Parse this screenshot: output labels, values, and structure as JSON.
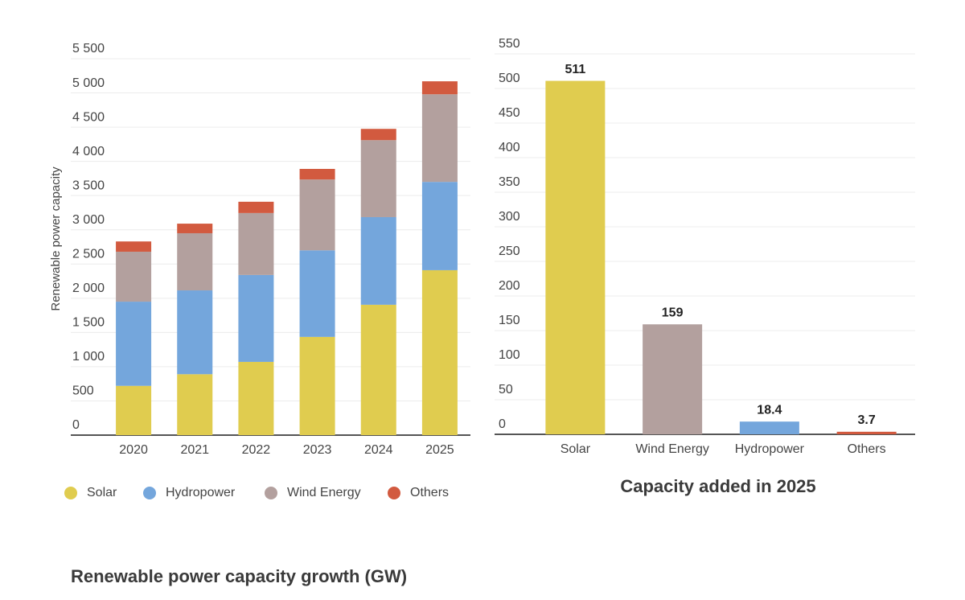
{
  "chart_data": [
    {
      "type": "bar",
      "stacked": true,
      "title": "Renewable power capacity growth (GW)",
      "y_label": "Renewable power capacity",
      "categories": [
        "2020",
        "2021",
        "2022",
        "2023",
        "2024",
        "2025"
      ],
      "series": [
        {
          "name": "Solar",
          "color": "#e0cc4f",
          "values": [
            720,
            890,
            1070,
            1435,
            1905,
            2410
          ]
        },
        {
          "name": "Hydropower",
          "color": "#74a6dc",
          "values": [
            1230,
            1225,
            1270,
            1265,
            1280,
            1290
          ]
        },
        {
          "name": "Wind Energy",
          "color": "#b3a09e",
          "values": [
            730,
            835,
            905,
            1035,
            1125,
            1280
          ]
        },
        {
          "name": "Others",
          "color": "#d25a3f",
          "values": [
            150,
            140,
            165,
            155,
            165,
            190
          ]
        }
      ],
      "ylim": [
        0,
        5500
      ],
      "yticks": [
        0,
        500,
        {
          "value": 1000,
          "label": "1 000"
        },
        {
          "value": 1500,
          "label": "1 500"
        },
        {
          "value": 2000,
          "label": "2 000"
        },
        {
          "value": 2500,
          "label": "2 500"
        },
        {
          "value": 3000,
          "label": "3 000"
        },
        {
          "value": 3500,
          "label": "3 500"
        },
        {
          "value": 4000,
          "label": "4 000"
        },
        {
          "value": 4500,
          "label": "4 500"
        },
        {
          "value": 5000,
          "label": "5 000"
        },
        {
          "value": 5500,
          "label": "5 500"
        }
      ],
      "grid": true,
      "legend": "bottom"
    },
    {
      "type": "bar",
      "title": "Capacity added in 2025",
      "categories": [
        "Solar",
        "Wind Energy",
        "Hydropower",
        "Others"
      ],
      "values": [
        511,
        159,
        18.4,
        3.7
      ],
      "colors": [
        "#e0cc4f",
        "#b3a09e",
        "#74a6dc",
        "#d25a3f"
      ],
      "ylim": [
        0,
        550
      ],
      "yticks": [
        0,
        50,
        100,
        150,
        200,
        250,
        300,
        350,
        400,
        450,
        500,
        550
      ],
      "grid": true
    }
  ]
}
